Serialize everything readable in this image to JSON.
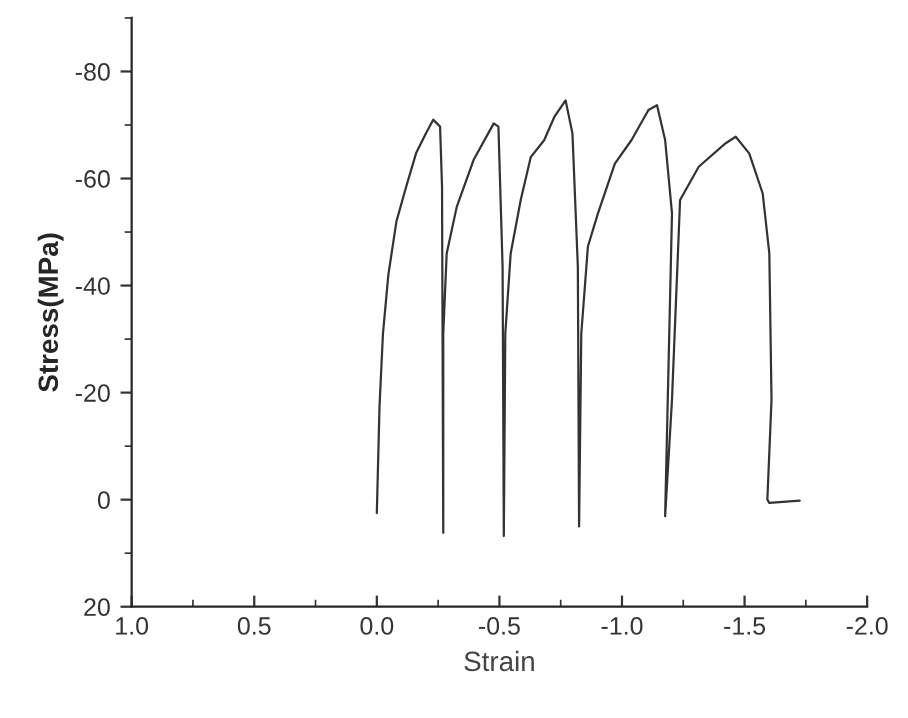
{
  "chart_data": {
    "type": "line",
    "xlabel": "Strain",
    "ylabel": "Stress(MPa)",
    "xlim": [
      1.0,
      -2.0
    ],
    "xticks": [
      {
        "value": 1,
        "label": "1.0"
      },
      0.5,
      {
        "value": 0,
        "label": "0.0"
      },
      -0.5,
      {
        "value": -1,
        "label": "-1.0"
      },
      -1.5,
      {
        "value": -2,
        "label": "-2.0"
      }
    ],
    "ylim": [
      20,
      -90
    ],
    "yticks": [
      20,
      0,
      -20,
      -40,
      -60,
      -80
    ],
    "grid": false,
    "legend": false,
    "marker": "none",
    "line_style": "solid",
    "series": [
      {
        "color": "#333333",
        "x": [
          0,
          -0.011,
          -0.025,
          -0.047,
          -0.08,
          -0.12,
          -0.16,
          -0.2,
          -0.23,
          -0.258,
          -0.266,
          -0.271,
          -0.271,
          -0.285,
          -0.326,
          -0.395,
          -0.477,
          -0.496,
          -0.513,
          -0.518,
          -0.524,
          -0.546,
          -0.587,
          -0.628,
          -0.683,
          -0.724,
          -0.77,
          -0.798,
          -0.82,
          -0.825,
          -0.834,
          -0.861,
          -0.902,
          -0.971,
          -1.039,
          -1.108,
          -1.143,
          -1.176,
          -1.204,
          -1.176,
          -1.204,
          -1.237,
          -1.313,
          -1.423,
          -1.464,
          -1.519,
          -1.574,
          -1.601,
          -1.61,
          -1.593,
          -1.601,
          -1.725
        ],
        "values": [
          2.5,
          -17.4,
          -31,
          -42,
          -52,
          -58.5,
          -64.7,
          -68.4,
          -71,
          -69.7,
          -58.5,
          6.2,
          -31,
          -46,
          -54.7,
          -63.5,
          -70.3,
          -69.7,
          -43.5,
          6.8,
          -31,
          -46,
          -56,
          -64,
          -67.2,
          -71.5,
          -74.6,
          -68.4,
          -43.5,
          5,
          -31,
          -47.3,
          -53.5,
          -62.8,
          -67.2,
          -72.8,
          -73.7,
          -67.2,
          -53.5,
          3.1,
          -18.7,
          -56,
          -62.2,
          -66.6,
          -67.8,
          -64.7,
          -57.2,
          -46,
          -18.7,
          0,
          0.6,
          0.2
        ]
      }
    ]
  }
}
